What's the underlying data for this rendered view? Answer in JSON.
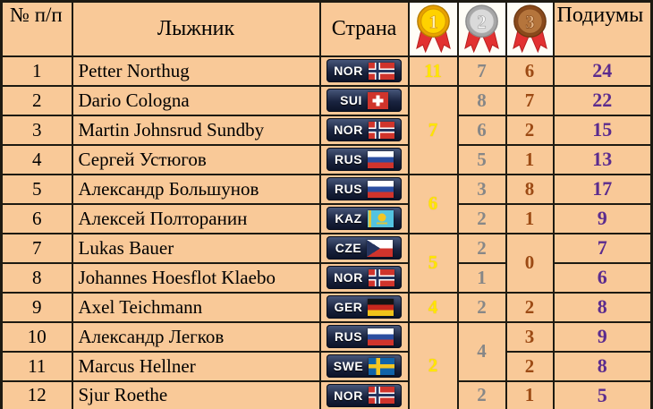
{
  "header": {
    "col_num": "№ п/п",
    "col_skier": "Лыжник",
    "col_country": "Страна",
    "col_podiums": "Подиумы",
    "medals": [
      {
        "name": "gold-medal",
        "label": "1"
      },
      {
        "name": "silver-medal",
        "label": "2"
      },
      {
        "name": "bronze-medal",
        "label": "3"
      }
    ]
  },
  "colors": {
    "table_background": "#F9C998",
    "border": "#1d1a12",
    "gold_count": "#FFE600",
    "silver_count": "#878787",
    "bronze_count": "#9C4A14",
    "podium_count": "#5B2B8E",
    "medal_cell_background": "#FFFDF6",
    "badge_background": "#1a2440",
    "ribbon_red": "#E23131"
  },
  "rows": [
    {
      "num": "1",
      "name": "Petter Northug",
      "country": "NOR",
      "gold": "11",
      "silver": "7",
      "bronze": "6",
      "podiums": "24"
    },
    {
      "num": "2",
      "name": "Dario Cologna",
      "country": "SUI",
      "gold": "7",
      "silver": "8",
      "bronze": "7",
      "podiums": "22"
    },
    {
      "num": "3",
      "name": "Martin Johnsrud Sundby",
      "country": "NOR",
      "silver": "6",
      "bronze": "2",
      "podiums": "15"
    },
    {
      "num": "4",
      "name": "Сергей Устюгов",
      "country": "RUS",
      "silver": "5",
      "bronze": "1",
      "podiums": "13"
    },
    {
      "num": "5",
      "name": "Александр Большунов",
      "country": "RUS",
      "gold": "6",
      "silver": "3",
      "bronze": "8",
      "podiums": "17"
    },
    {
      "num": "6",
      "name": "Алексей Полторанин",
      "country": "KAZ",
      "silver": "2",
      "bronze": "1",
      "podiums": "9"
    },
    {
      "num": "7",
      "name": "Lukas Bauer",
      "country": "CZE",
      "gold": "5",
      "silver": "2",
      "bronze": "0",
      "podiums": "7"
    },
    {
      "num": "8",
      "name": "Johannes Hoesflot Klaebo",
      "country": "NOR",
      "silver": "1",
      "podiums": "6"
    },
    {
      "num": "9",
      "name": "Axel Teichmann",
      "country": "GER",
      "gold": "4",
      "silver": "2",
      "bronze": "2",
      "podiums": "8"
    },
    {
      "num": "10",
      "name": "Александр Легков",
      "country": "RUS",
      "gold": "2",
      "silver": "4",
      "bronze": "3",
      "podiums": "9"
    },
    {
      "num": "11",
      "name": "Marcus Hellner",
      "country": "SWE",
      "bronze": "2",
      "podiums": "8"
    },
    {
      "num": "12",
      "name": "Sjur Roethe",
      "country": "NOR",
      "silver": "2",
      "bronze": "1",
      "podiums": "5"
    }
  ]
}
